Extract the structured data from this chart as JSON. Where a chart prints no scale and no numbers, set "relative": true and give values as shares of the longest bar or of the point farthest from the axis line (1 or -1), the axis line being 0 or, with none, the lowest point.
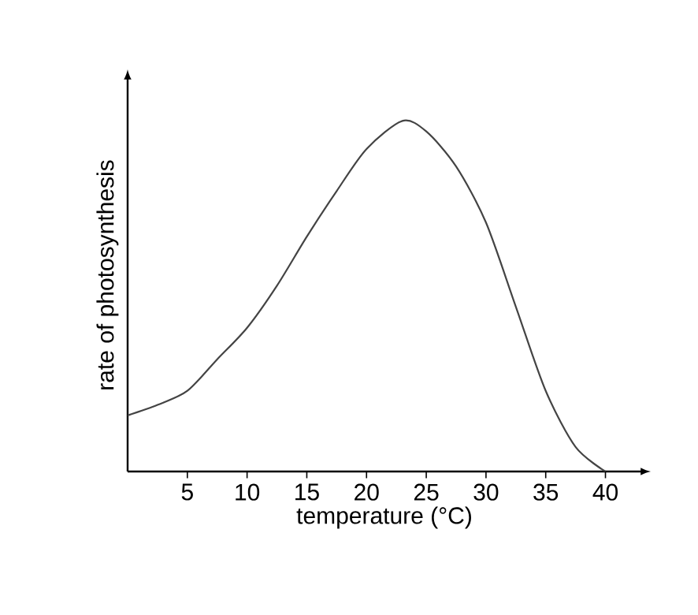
{
  "chart_data": {
    "type": "line",
    "xlabel": "temperature (°C)",
    "ylabel": "rate of photosynthesis",
    "relative": true,
    "x": [
      0,
      2.5,
      5,
      7.5,
      10,
      12.5,
      15,
      17.5,
      20,
      23,
      25,
      27.5,
      30,
      32.5,
      35,
      37.5,
      40
    ],
    "series": [
      {
        "color": "#444444",
        "values": [
          0.16,
          0.19,
          0.23,
          0.32,
          0.41,
          0.53,
          0.67,
          0.8,
          0.92,
          1,
          0.97,
          0.87,
          0.71,
          0.47,
          0.23,
          0.07,
          0
        ]
      }
    ],
    "xlim": [
      0,
      43
    ],
    "xticks": [
      5,
      10,
      15,
      20,
      25,
      30,
      35,
      40
    ],
    "grid": false,
    "marker": "none",
    "line_style": "solid"
  }
}
